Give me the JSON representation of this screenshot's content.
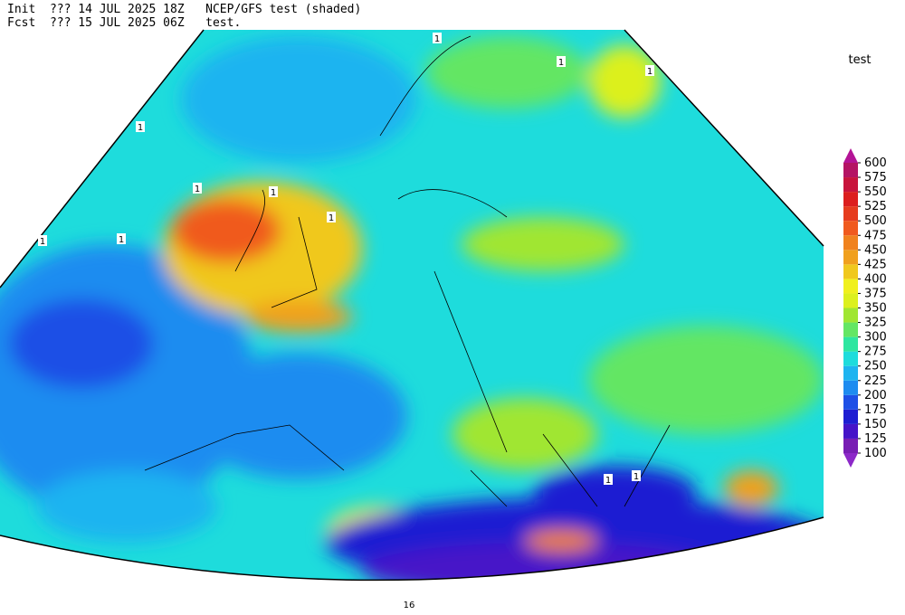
{
  "header": {
    "line1": "Init  ??? 14 JUL 2025 18Z   NCEP/GFS test (shaded)",
    "line2": "Fcst  ??? 15 JUL 2025 06Z   test."
  },
  "map": {
    "contour_labels": [
      "1",
      "1",
      "1",
      "1",
      "1",
      "1",
      "1",
      "1",
      "1",
      "1",
      "1",
      "16"
    ]
  },
  "colorbar": {
    "title": "test",
    "levels": [
      100,
      125,
      150,
      175,
      200,
      225,
      250,
      275,
      300,
      325,
      350,
      375,
      400,
      425,
      450,
      475,
      500,
      525,
      550,
      575,
      600
    ],
    "colors": [
      "#8c28c8",
      "#781eb4",
      "#4614c8",
      "#1e1ed2",
      "#1e50e6",
      "#1e8cf0",
      "#1eb4f0",
      "#1edcdc",
      "#2ee6a0",
      "#64e664",
      "#a0e632",
      "#dcf01e",
      "#f0f01e",
      "#f0c81e",
      "#f0a01e",
      "#f0821e",
      "#f05a1e",
      "#e63c1e",
      "#dc1e1e",
      "#c8143c",
      "#b41464",
      "#b41496"
    ]
  }
}
